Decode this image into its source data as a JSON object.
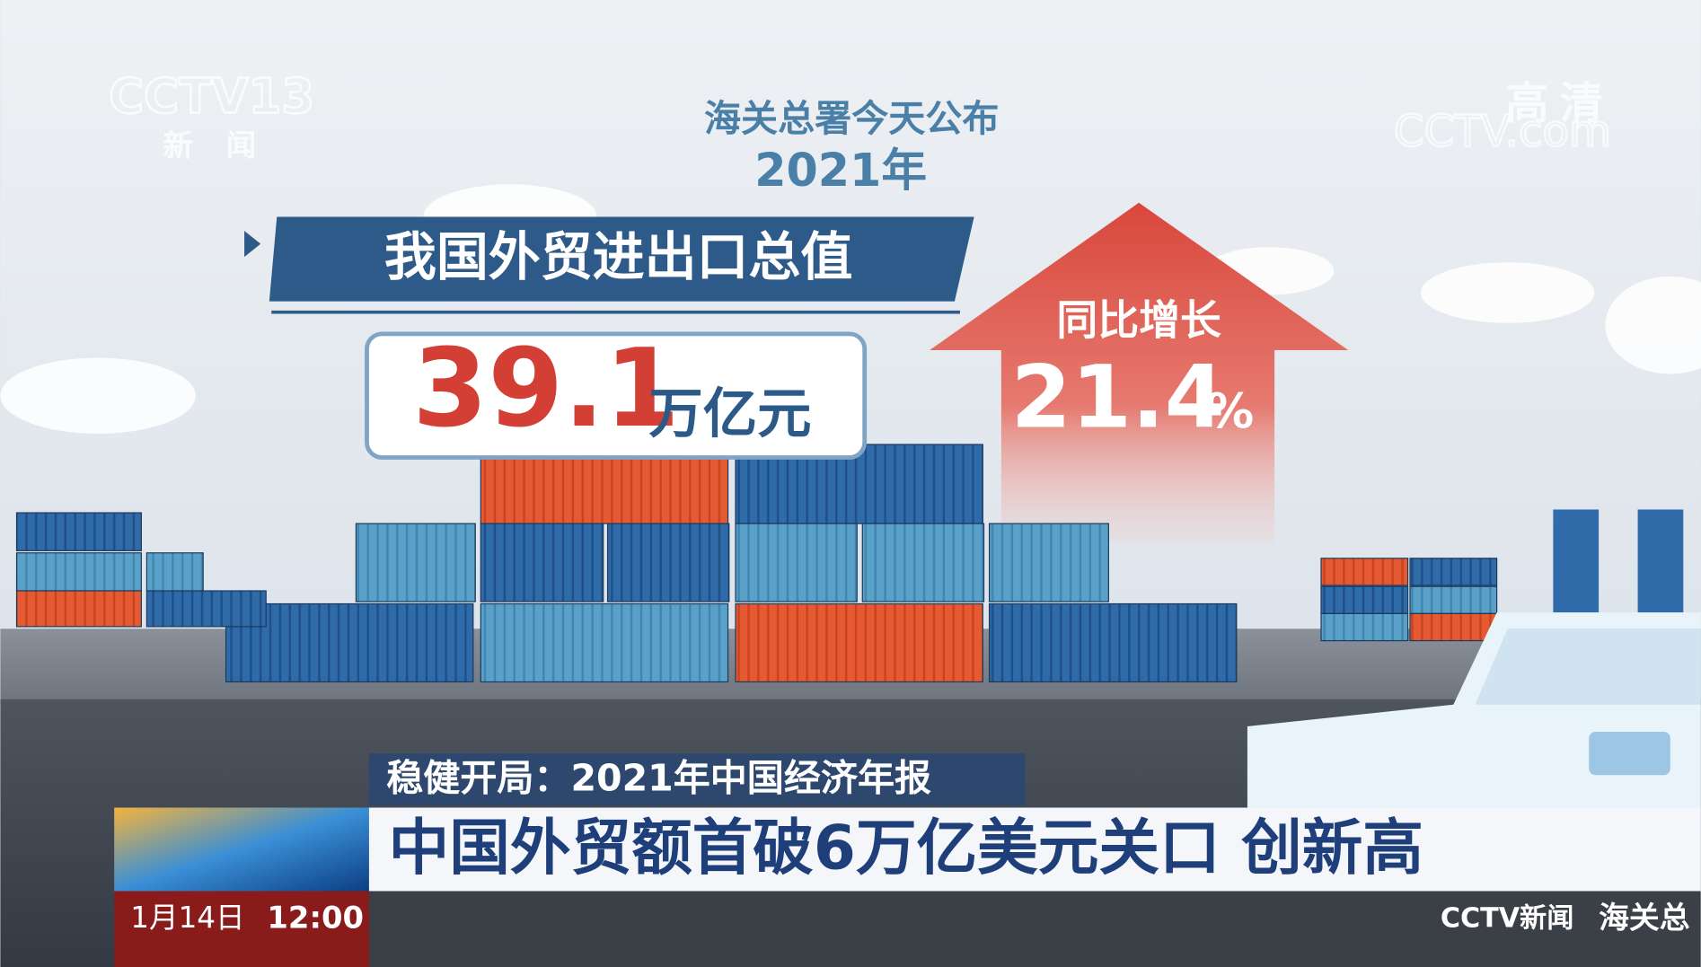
{
  "watermarks": {
    "channel_logo": "CCTV13",
    "channel_name": "新闻",
    "hd": "高清",
    "site": "CCTV.com"
  },
  "infographic": {
    "source": "海关总署今天公布",
    "year": "2021年",
    "headline": "我国外贸进出口总值",
    "total_value": "39.1",
    "total_unit": "万亿元",
    "growth_label": "同比增长",
    "growth_value": "21.4",
    "growth_unit": "%"
  },
  "ticker": {
    "program": "稳健开局：2021年中国经济年报",
    "headline": "中国外贸额首破6万亿美元关口 创新高",
    "date": "1月14日",
    "time": "12:00",
    "channel": "CCTV新闻",
    "scroll": "海关总"
  }
}
